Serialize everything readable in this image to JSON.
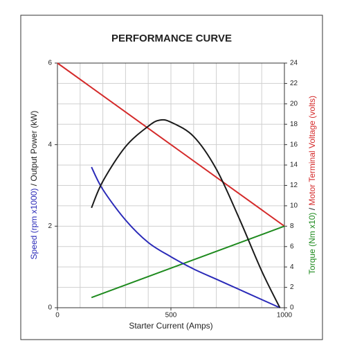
{
  "chart_data": {
    "type": "line",
    "title": "PERFORMANCE CURVE",
    "x_label": "Starter Current (Amps)",
    "y_label_parts": [
      {
        "text": "Speed (rpm x1000)",
        "color": "#2a2ab8"
      },
      {
        "text": " / ",
        "color": "#222222"
      },
      {
        "text": "Output Power (kW)",
        "color": "#222222"
      }
    ],
    "y2_label_parts": [
      {
        "text": "Torque (Nm x10)",
        "color": "#1e8a1e"
      },
      {
        "text": " / ",
        "color": "#222222"
      },
      {
        "text": "Motor Terminal Voltage (volts)",
        "color": "#d42a2a"
      }
    ],
    "xlim": [
      0,
      1000
    ],
    "xticks": [
      0,
      500,
      1000
    ],
    "x_gridlines": [
      0,
      100,
      200,
      300,
      400,
      500,
      600,
      700,
      800,
      900,
      1000
    ],
    "ylim": [
      0,
      6
    ],
    "yticks": [
      0,
      2,
      4,
      6
    ],
    "y2lim": [
      0,
      24
    ],
    "y2ticks": [
      0,
      2,
      4,
      6,
      8,
      10,
      12,
      14,
      16,
      18,
      20,
      22,
      24
    ],
    "grid": true,
    "series": [
      {
        "name": "Motor Terminal Voltage",
        "color": "#d42a2a",
        "axis": "y2",
        "x": [
          0,
          1000
        ],
        "values": [
          24,
          8
        ]
      },
      {
        "name": "Torque",
        "color": "#1e8a1e",
        "axis": "y2",
        "x": [
          150,
          1000
        ],
        "values": [
          1,
          8
        ]
      },
      {
        "name": "Speed",
        "color": "#2a2ab8",
        "x": [
          150,
          200,
          300,
          400,
          500,
          600,
          700,
          800,
          900,
          980
        ],
        "values": [
          3.45,
          2.9,
          2.15,
          1.6,
          1.25,
          0.95,
          0.7,
          0.45,
          0.2,
          0
        ]
      },
      {
        "name": "Output Power",
        "color": "#1a1a1a",
        "x": [
          150,
          200,
          300,
          400,
          450,
          500,
          600,
          700,
          800,
          900,
          980
        ],
        "values": [
          2.45,
          3.1,
          3.95,
          4.45,
          4.6,
          4.55,
          4.2,
          3.4,
          2.2,
          0.9,
          0
        ]
      }
    ]
  }
}
